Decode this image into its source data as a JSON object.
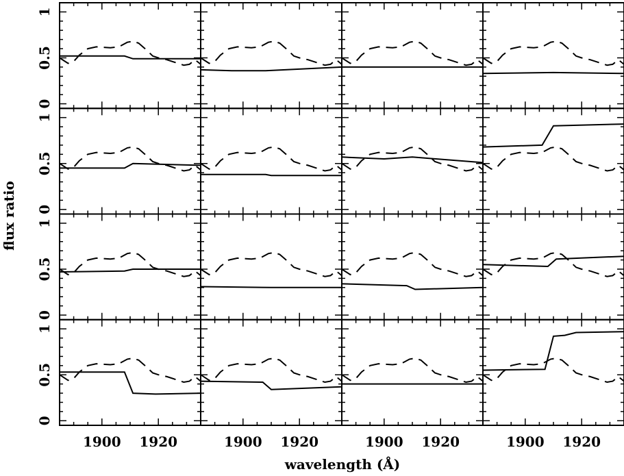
{
  "chart_data": {
    "type": "line",
    "layout": {
      "rows": 4,
      "cols": 4
    },
    "xlabel": "wavelength (Å)",
    "ylabel": "flux ratio",
    "xlim": [
      1885,
      1935
    ],
    "ylim": [
      -0.05,
      1.1
    ],
    "x_ticks": [
      1900,
      1920
    ],
    "y_ticks": [
      0,
      0.5,
      1
    ],
    "y_tick_labels": [
      "0",
      "0.5",
      "1"
    ],
    "reference_dashed": {
      "x": [
        1885,
        1888,
        1890,
        1892,
        1895,
        1898,
        1903,
        1906,
        1909,
        1911,
        1913,
        1916,
        1918,
        1920,
        1923,
        1926,
        1929,
        1931,
        1933,
        1935
      ],
      "y": [
        0.5,
        0.44,
        0.46,
        0.53,
        0.6,
        0.62,
        0.61,
        0.62,
        0.67,
        0.68,
        0.66,
        0.58,
        0.52,
        0.5,
        0.48,
        0.45,
        0.42,
        0.43,
        0.48,
        0.43
      ]
    },
    "panels": [
      {
        "x": [
          1885,
          1908,
          1911,
          1935
        ],
        "y": [
          0.52,
          0.52,
          0.49,
          0.49
        ]
      },
      {
        "x": [
          1885,
          1896,
          1908,
          1935
        ],
        "y": [
          0.37,
          0.36,
          0.36,
          0.4
        ]
      },
      {
        "x": [
          1885,
          1935
        ],
        "y": [
          0.4,
          0.4
        ]
      },
      {
        "x": [
          1885,
          1910,
          1935
        ],
        "y": [
          0.33,
          0.34,
          0.33
        ]
      },
      {
        "x": [
          1885,
          1908,
          1911,
          1935
        ],
        "y": [
          0.45,
          0.45,
          0.5,
          0.48
        ]
      },
      {
        "x": [
          1885,
          1908,
          1910,
          1935
        ],
        "y": [
          0.38,
          0.38,
          0.37,
          0.37
        ]
      },
      {
        "x": [
          1885,
          1900,
          1910,
          1935
        ],
        "y": [
          0.57,
          0.55,
          0.57,
          0.51
        ]
      },
      {
        "x": [
          1885,
          1906,
          1910,
          1935
        ],
        "y": [
          0.68,
          0.7,
          0.91,
          0.93
        ]
      },
      {
        "x": [
          1885,
          1908,
          1911,
          1935
        ],
        "y": [
          0.47,
          0.48,
          0.5,
          0.5
        ]
      },
      {
        "x": [
          1885,
          1910,
          1935
        ],
        "y": [
          0.31,
          0.3,
          0.3
        ]
      },
      {
        "x": [
          1885,
          1908,
          1911,
          1935
        ],
        "y": [
          0.34,
          0.32,
          0.28,
          0.3
        ]
      },
      {
        "x": [
          1885,
          1908,
          1911,
          1935
        ],
        "y": [
          0.55,
          0.53,
          0.61,
          0.64
        ]
      },
      {
        "x": [
          1885,
          1908,
          1911,
          1919,
          1935
        ],
        "y": [
          0.53,
          0.53,
          0.3,
          0.29,
          0.3
        ]
      },
      {
        "x": [
          1885,
          1907,
          1910,
          1935
        ],
        "y": [
          0.43,
          0.42,
          0.34,
          0.37
        ]
      },
      {
        "x": [
          1885,
          1935
        ],
        "y": [
          0.4,
          0.4
        ]
      },
      {
        "x": [
          1885,
          1907,
          1910,
          1914,
          1918,
          1935
        ],
        "y": [
          0.55,
          0.56,
          0.92,
          0.93,
          0.96,
          0.97
        ]
      }
    ]
  }
}
